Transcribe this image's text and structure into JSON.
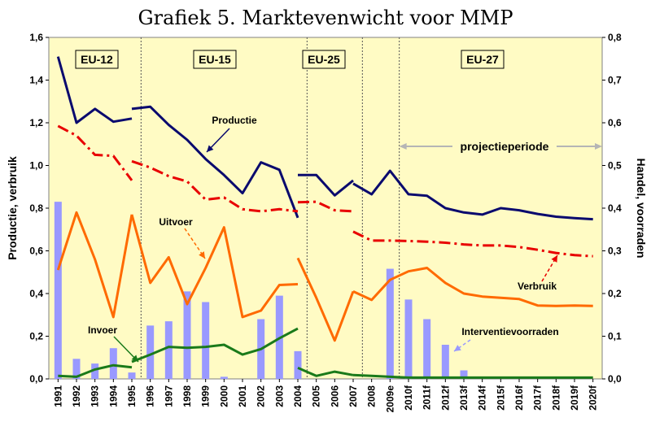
{
  "chart_data": {
    "type": "line",
    "title": "Grafiek 5. Marktevenwicht voor MMP",
    "ylabel_left": "Productie, verbruik",
    "ylabel_right": "Handel, voorraden",
    "ylim_left": [
      0,
      1.6
    ],
    "ylim_right": [
      0,
      0.8
    ],
    "yticks_left": [
      "0,0",
      "0,2",
      "0,4",
      "0,6",
      "0,8",
      "1,0",
      "1,2",
      "1,4",
      "1,6"
    ],
    "yticks_right": [
      "0,0",
      "0,1",
      "0,2",
      "0,3",
      "0,4",
      "0,5",
      "0,6",
      "0,7",
      "0,8"
    ],
    "categories": [
      "1991",
      "1992",
      "1993",
      "1994",
      "1995",
      "1996",
      "1997",
      "1998",
      "1999",
      "2000",
      "2001",
      "2002",
      "2003",
      "2004",
      "2005",
      "2006",
      "2007",
      "2008",
      "2009e",
      "2010f",
      "2011f",
      "2012f",
      "2013f",
      "2014f",
      "2015f",
      "2016f",
      "2017f",
      "2018f",
      "2019f",
      "2020f"
    ],
    "periods": [
      {
        "label": "EU-12"
      },
      {
        "label": "EU-15"
      },
      {
        "label": "EU-25"
      },
      {
        "label": "EU-27"
      }
    ],
    "projection_label": "projectieperiode",
    "series": [
      {
        "name": "Productie",
        "axis": "left",
        "color": "#0a0a6e",
        "style": "solid",
        "segments": [
          {
            "from": "1991",
            "values": [
              1.51,
              1.2,
              1.265,
              1.205,
              1.22
            ]
          },
          {
            "from": "1995",
            "values": [
              1.265,
              1.275,
              1.19,
              1.12,
              1.03,
              0.955,
              0.87,
              1.015,
              0.98,
              0.755
            ]
          },
          {
            "from": "2004",
            "values": [
              0.955,
              0.955,
              0.86,
              0.93
            ]
          },
          {
            "from": "2007",
            "values": [
              0.915,
              0.865,
              0.975,
              0.865,
              0.858,
              0.8,
              0.78,
              0.77,
              0.8,
              0.79,
              0.773,
              0.76,
              0.753,
              0.748
            ]
          }
        ]
      },
      {
        "name": "Verbruik",
        "axis": "left",
        "color": "#e80000",
        "style": "dashdot",
        "segments": [
          {
            "from": "1991",
            "values": [
              1.185,
              1.14,
              1.05,
              1.045,
              0.93
            ]
          },
          {
            "from": "1995",
            "values": [
              1.02,
              0.99,
              0.95,
              0.925,
              0.84,
              0.85,
              0.795,
              0.785,
              0.795,
              0.785
            ]
          },
          {
            "from": "2004",
            "values": [
              0.828,
              0.83,
              0.79,
              0.785
            ]
          },
          {
            "from": "2007",
            "values": [
              0.69,
              0.648,
              0.648,
              0.646,
              0.643,
              0.638,
              0.63,
              0.625,
              0.625,
              0.618,
              0.605,
              0.59,
              0.58,
              0.575
            ]
          }
        ]
      },
      {
        "name": "Uitvoer",
        "axis": "right",
        "color": "#ff6a00",
        "style": "solid",
        "segments": [
          {
            "from": "1991",
            "values": [
              0.255,
              0.39,
              0.28,
              0.145,
              0.385
            ]
          },
          {
            "from": "1995",
            "values": [
              0.385,
              0.225,
              0.285,
              0.175,
              0.26,
              0.355,
              0.145,
              0.16,
              0.22,
              0.222
            ]
          },
          {
            "from": "2004",
            "values": [
              0.283,
              0.19,
              0.09,
              0.205
            ]
          },
          {
            "from": "2007",
            "values": [
              0.205,
              0.185,
              0.232,
              0.252,
              0.26,
              0.225,
              0.2,
              0.193,
              0.19,
              0.187,
              0.172,
              0.171,
              0.172,
              0.171
            ]
          }
        ]
      },
      {
        "name": "Invoer",
        "axis": "right",
        "color": "#1a7a1a",
        "style": "solid",
        "segments": [
          {
            "from": "1991",
            "values": [
              0.007,
              0.005,
              0.022,
              0.032,
              0.027
            ]
          },
          {
            "from": "1995",
            "values": [
              0.04,
              0.057,
              0.075,
              0.073,
              0.075,
              0.08,
              0.057,
              0.07,
              0.095,
              0.118
            ]
          },
          {
            "from": "2004",
            "values": [
              0.026,
              0.007,
              0.017,
              0.009
            ]
          },
          {
            "from": "2007",
            "values": [
              0.009,
              0.007,
              0.005,
              0.003,
              0.003,
              0.003,
              0.003,
              0.003,
              0.003,
              0.003,
              0.003,
              0.003,
              0.003,
              0.003
            ]
          }
        ]
      }
    ],
    "bars": {
      "name": "Interventievoorraden",
      "axis": "right",
      "color": "#9999ff",
      "values": [
        0.415,
        0.047,
        0.036,
        0.072,
        0.015,
        0.125,
        0.135,
        0.205,
        0.18,
        0.005,
        0,
        0.14,
        0.195,
        0.065,
        0,
        0,
        0,
        0,
        0.258,
        0.186,
        0.14,
        0.08,
        0.02,
        0,
        0,
        0,
        0,
        0,
        0,
        0
      ]
    },
    "labels": {
      "productie": "Productie",
      "verbruik": "Verbruik",
      "uitvoer": "Uitvoer",
      "invoer": "Invoer",
      "interventie": "Interventievoorraden"
    }
  }
}
